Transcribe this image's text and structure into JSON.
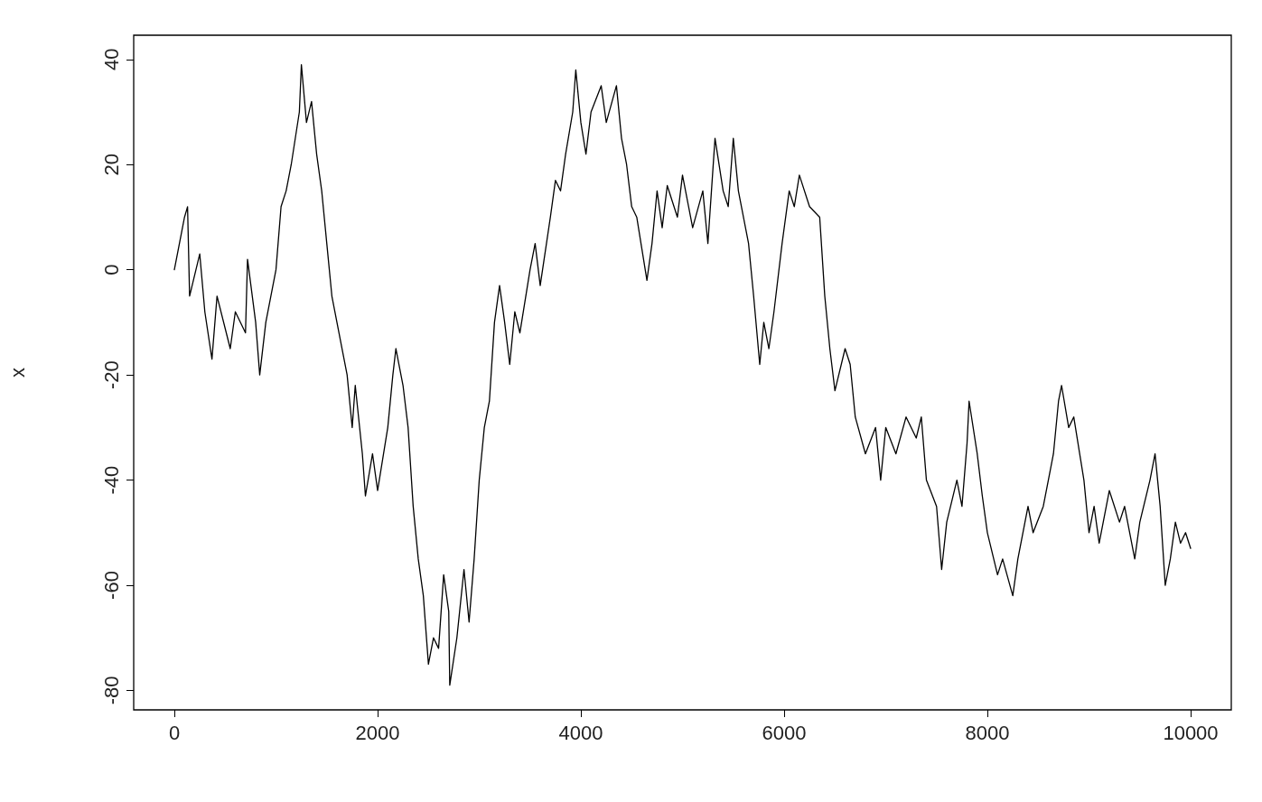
{
  "chart_data": {
    "type": "line",
    "ylabel": "x",
    "x": [
      0,
      100,
      130,
      150,
      250,
      300,
      370,
      420,
      550,
      600,
      700,
      720,
      800,
      840,
      900,
      1000,
      1050,
      1100,
      1150,
      1230,
      1250,
      1300,
      1350,
      1400,
      1450,
      1500,
      1550,
      1650,
      1700,
      1750,
      1780,
      1850,
      1880,
      1950,
      2000,
      2100,
      2150,
      2180,
      2250,
      2300,
      2350,
      2400,
      2450,
      2500,
      2550,
      2600,
      2650,
      2700,
      2710,
      2780,
      2850,
      2900,
      2950,
      3000,
      3050,
      3100,
      3150,
      3200,
      3250,
      3300,
      3350,
      3400,
      3500,
      3550,
      3600,
      3700,
      3750,
      3800,
      3850,
      3920,
      3950,
      4000,
      4050,
      4100,
      4200,
      4250,
      4350,
      4400,
      4450,
      4500,
      4550,
      4600,
      4650,
      4700,
      4750,
      4800,
      4850,
      4950,
      5000,
      5100,
      5200,
      5250,
      5320,
      5400,
      5450,
      5500,
      5550,
      5650,
      5700,
      5760,
      5800,
      5850,
      5900,
      5980,
      6050,
      6100,
      6150,
      6250,
      6350,
      6400,
      6450,
      6500,
      6600,
      6650,
      6700,
      6800,
      6900,
      6950,
      7000,
      7100,
      7200,
      7300,
      7350,
      7400,
      7500,
      7550,
      7600,
      7700,
      7750,
      7800,
      7820,
      7900,
      7950,
      8000,
      8100,
      8150,
      8250,
      8300,
      8400,
      8450,
      8550,
      8600,
      8650,
      8700,
      8730,
      8800,
      8850,
      8950,
      9000,
      9050,
      9100,
      9200,
      9300,
      9350,
      9450,
      9500,
      9600,
      9650,
      9700,
      9750,
      9800,
      9850,
      9900,
      9950,
      10000
    ],
    "values": [
      0,
      10,
      12,
      -5,
      3,
      -8,
      -17,
      -5,
      -15,
      -8,
      -12,
      2,
      -10,
      -20,
      -10,
      0,
      12,
      15,
      20,
      30,
      39,
      28,
      32,
      22,
      15,
      5,
      -5,
      -15,
      -20,
      -30,
      -22,
      -35,
      -43,
      -35,
      -42,
      -30,
      -20,
      -15,
      -22,
      -30,
      -45,
      -55,
      -62,
      -75,
      -70,
      -72,
      -58,
      -65,
      -79,
      -70,
      -57,
      -67,
      -55,
      -40,
      -30,
      -25,
      -10,
      -3,
      -10,
      -18,
      -8,
      -12,
      0,
      5,
      -3,
      10,
      17,
      15,
      22,
      30,
      38,
      28,
      22,
      30,
      35,
      28,
      35,
      25,
      20,
      12,
      10,
      4,
      -2,
      5,
      15,
      8,
      16,
      10,
      18,
      8,
      15,
      5,
      25,
      15,
      12,
      25,
      15,
      5,
      -5,
      -18,
      -10,
      -15,
      -8,
      5,
      15,
      12,
      18,
      12,
      10,
      -5,
      -15,
      -23,
      -15,
      -18,
      -28,
      -35,
      -30,
      -40,
      -30,
      -35,
      -28,
      -32,
      -28,
      -40,
      -45,
      -57,
      -48,
      -40,
      -45,
      -33,
      -25,
      -35,
      -43,
      -50,
      -58,
      -55,
      -62,
      -55,
      -45,
      -50,
      -45,
      -40,
      -35,
      -25,
      -22,
      -30,
      -28,
      -40,
      -50,
      -45,
      -52,
      -42,
      -48,
      -45,
      -55,
      -48,
      -40,
      -35,
      -45,
      -60,
      -55,
      -48,
      -52,
      -50,
      -53
    ],
    "color": "#000000",
    "xlim": [
      -400,
      10400
    ],
    "xticks": [
      0,
      2000,
      4000,
      6000,
      8000,
      10000
    ],
    "ylim": [
      -83.7,
      44.6
    ],
    "yticks": [
      -80,
      -60,
      -40,
      -20,
      0,
      20,
      40
    ],
    "grid": false,
    "marker": "none",
    "line_style": "solid"
  }
}
